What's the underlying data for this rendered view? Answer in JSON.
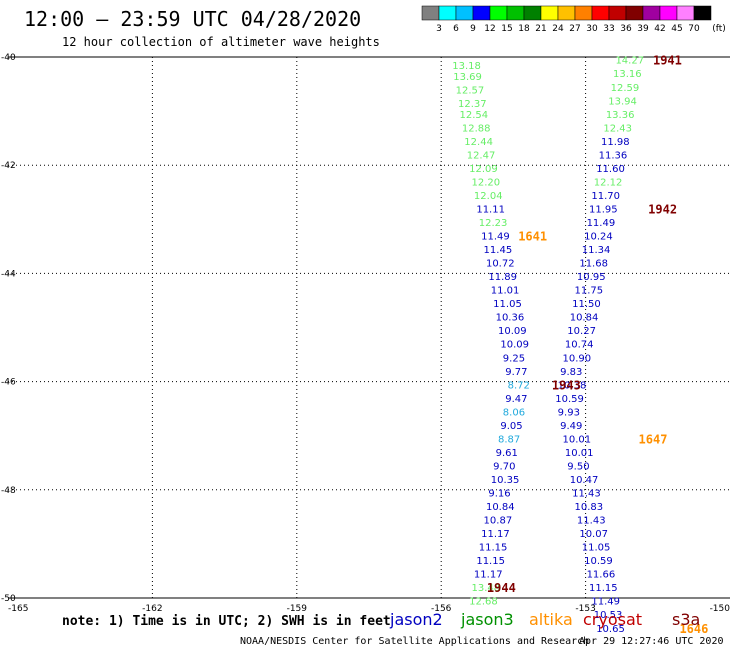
{
  "header": {
    "title": "12:00 – 23:59 UTC 04/28/2020",
    "subtitle": "12 hour collection of altimeter wave heights"
  },
  "colorbar": {
    "colors": [
      "#808080",
      "#00ffff",
      "#00c0ff",
      "#0000ff",
      "#00ff00",
      "#00c000",
      "#008000",
      "#ffff00",
      "#ffc000",
      "#ff8000",
      "#ff0000",
      "#c00000",
      "#800000",
      "#a000a0",
      "#ff00ff",
      "#ff80ff",
      "#000000"
    ],
    "labels": [
      "3",
      "6",
      "9",
      "12",
      "15",
      "18",
      "21",
      "24",
      "27",
      "30",
      "33",
      "36",
      "39",
      "42",
      "45",
      "70"
    ],
    "unit": "(ft)"
  },
  "legend": [
    {
      "name": "jason2",
      "color": "#0000c0"
    },
    {
      "name": "jason3",
      "color": "#009000"
    },
    {
      "name": "altika",
      "color": "#ff9000"
    },
    {
      "name": "cryosat",
      "color": "#c00000"
    },
    {
      "name": "s3a",
      "color": "#800000"
    }
  ],
  "note": "note: 1) Time is in UTC; 2) SWH is in feet",
  "footer": {
    "credit": "NOAA/NESDIS Center for Satellite Applications and Research",
    "timestamp": "Apr 29 12:27:46 UTC 2020"
  },
  "chart_data": {
    "type": "scatter",
    "xlim": [
      -165,
      -150
    ],
    "ylim": [
      -50,
      -40
    ],
    "x_ticks": [
      -165,
      -162,
      -159,
      -156,
      -153,
      -150
    ],
    "y_ticks": [
      -40,
      -42,
      -44,
      -46,
      -48,
      -50
    ],
    "x_tick_labels": [
      "-165",
      "-162",
      "-159",
      "-156",
      "-153",
      "-150"
    ],
    "y_tick_labels": [
      "-40",
      "-42",
      "-44",
      "-46",
      "-48",
      "-50"
    ],
    "grid": true,
    "points": [
      {
        "x": -155.77,
        "y": -40.15,
        "v": "13.18",
        "c": "#66ee66"
      },
      {
        "x": -155.75,
        "y": -40.35,
        "v": "13.69",
        "c": "#66ee66"
      },
      {
        "x": -155.7,
        "y": -40.6,
        "v": "12.57",
        "c": "#66ee66"
      },
      {
        "x": -155.65,
        "y": -40.85,
        "v": "12.37",
        "c": "#66ee66"
      },
      {
        "x": -155.62,
        "y": -41.05,
        "v": "12.54",
        "c": "#66ee66"
      },
      {
        "x": -155.57,
        "y": -41.3,
        "v": "12.88",
        "c": "#66ee66"
      },
      {
        "x": -155.52,
        "y": -41.55,
        "v": "12.44",
        "c": "#66ee66"
      },
      {
        "x": -155.47,
        "y": -41.8,
        "v": "12.47",
        "c": "#66ee66"
      },
      {
        "x": -155.42,
        "y": -42.05,
        "v": "12.09",
        "c": "#66ee66"
      },
      {
        "x": -155.37,
        "y": -42.3,
        "v": "12.20",
        "c": "#66ee66"
      },
      {
        "x": -155.32,
        "y": -42.55,
        "v": "12.04",
        "c": "#66ee66"
      },
      {
        "x": -155.27,
        "y": -42.8,
        "v": "11.11",
        "c": "#0000c0"
      },
      {
        "x": -155.22,
        "y": -43.05,
        "v": "12.23",
        "c": "#66ee66"
      },
      {
        "x": -155.17,
        "y": -43.3,
        "v": "11.49",
        "c": "#0000c0"
      },
      {
        "x": -155.12,
        "y": -43.55,
        "v": "11.45",
        "c": "#0000c0"
      },
      {
        "x": -155.07,
        "y": -43.8,
        "v": "10.72",
        "c": "#0000c0"
      },
      {
        "x": -155.02,
        "y": -44.05,
        "v": "11.89",
        "c": "#0000c0"
      },
      {
        "x": -154.97,
        "y": -44.3,
        "v": "11.01",
        "c": "#0000c0"
      },
      {
        "x": -154.92,
        "y": -44.55,
        "v": "11.05",
        "c": "#0000c0"
      },
      {
        "x": -154.87,
        "y": -44.8,
        "v": "10.36",
        "c": "#0000c0"
      },
      {
        "x": -154.82,
        "y": -45.05,
        "v": "10.09",
        "c": "#0000c0"
      },
      {
        "x": -154.77,
        "y": -45.3,
        "v": "10.09",
        "c": "#0000c0"
      },
      {
        "x": -154.72,
        "y": -45.55,
        "v": "9.25",
        "c": "#0000c0"
      },
      {
        "x": -154.67,
        "y": -45.8,
        "v": "9.77",
        "c": "#0000c0"
      },
      {
        "x": -154.62,
        "y": -46.05,
        "v": "8.72",
        "c": "#22aadd"
      },
      {
        "x": -154.67,
        "y": -46.3,
        "v": "9.47",
        "c": "#0000c0"
      },
      {
        "x": -154.72,
        "y": -46.55,
        "v": "8.06",
        "c": "#22aadd"
      },
      {
        "x": -154.77,
        "y": -46.8,
        "v": "9.05",
        "c": "#0000c0"
      },
      {
        "x": -154.82,
        "y": -47.05,
        "v": "8.87",
        "c": "#22aadd"
      },
      {
        "x": -154.87,
        "y": -47.3,
        "v": "9.61",
        "c": "#0000c0"
      },
      {
        "x": -154.92,
        "y": -47.55,
        "v": "9.70",
        "c": "#0000c0"
      },
      {
        "x": -154.97,
        "y": -47.8,
        "v": "10.35",
        "c": "#0000c0"
      },
      {
        "x": -155.02,
        "y": -48.05,
        "v": "9.16",
        "c": "#0000c0"
      },
      {
        "x": -155.07,
        "y": -48.3,
        "v": "10.84",
        "c": "#0000c0"
      },
      {
        "x": -155.12,
        "y": -48.55,
        "v": "10.87",
        "c": "#0000c0"
      },
      {
        "x": -155.17,
        "y": -48.8,
        "v": "11.17",
        "c": "#0000c0"
      },
      {
        "x": -155.22,
        "y": -49.05,
        "v": "11.15",
        "c": "#0000c0"
      },
      {
        "x": -155.27,
        "y": -49.3,
        "v": "11.15",
        "c": "#0000c0"
      },
      {
        "x": -155.32,
        "y": -49.55,
        "v": "11.17",
        "c": "#0000c0"
      },
      {
        "x": -155.37,
        "y": -49.8,
        "v": "13.48",
        "c": "#66ee66"
      },
      {
        "x": -155.42,
        "y": -50.05,
        "v": "12.68",
        "c": "#66ee66"
      },
      {
        "x": -152.38,
        "y": -40.05,
        "v": "14.27",
        "c": "#66ee66"
      },
      {
        "x": -152.43,
        "y": -40.3,
        "v": "13.16",
        "c": "#66ee66"
      },
      {
        "x": -152.48,
        "y": -40.55,
        "v": "12.59",
        "c": "#66ee66"
      },
      {
        "x": -152.53,
        "y": -40.8,
        "v": "13.94",
        "c": "#66ee66"
      },
      {
        "x": -152.58,
        "y": -41.05,
        "v": "13.36",
        "c": "#66ee66"
      },
      {
        "x": -152.63,
        "y": -41.3,
        "v": "12.43",
        "c": "#66ee66"
      },
      {
        "x": -152.68,
        "y": -41.55,
        "v": "11.98",
        "c": "#0000c0"
      },
      {
        "x": -152.73,
        "y": -41.8,
        "v": "11.36",
        "c": "#0000c0"
      },
      {
        "x": -152.78,
        "y": -42.05,
        "v": "11.60",
        "c": "#0000c0"
      },
      {
        "x": -152.83,
        "y": -42.3,
        "v": "12.12",
        "c": "#66ee66"
      },
      {
        "x": -152.88,
        "y": -42.55,
        "v": "11.70",
        "c": "#0000c0"
      },
      {
        "x": -152.93,
        "y": -42.8,
        "v": "11.95",
        "c": "#0000c0"
      },
      {
        "x": -152.98,
        "y": -43.05,
        "v": "11.49",
        "c": "#0000c0"
      },
      {
        "x": -153.03,
        "y": -43.3,
        "v": "10.24",
        "c": "#0000c0"
      },
      {
        "x": -153.08,
        "y": -43.55,
        "v": "11.34",
        "c": "#0000c0"
      },
      {
        "x": -153.13,
        "y": -43.8,
        "v": "11.68",
        "c": "#0000c0"
      },
      {
        "x": -153.18,
        "y": -44.05,
        "v": "10.95",
        "c": "#0000c0"
      },
      {
        "x": -153.23,
        "y": -44.3,
        "v": "11.75",
        "c": "#0000c0"
      },
      {
        "x": -153.28,
        "y": -44.55,
        "v": "11.50",
        "c": "#0000c0"
      },
      {
        "x": -153.33,
        "y": -44.8,
        "v": "10.84",
        "c": "#0000c0"
      },
      {
        "x": -153.38,
        "y": -45.05,
        "v": "10.27",
        "c": "#0000c0"
      },
      {
        "x": -153.43,
        "y": -45.3,
        "v": "10.74",
        "c": "#0000c0"
      },
      {
        "x": -153.48,
        "y": -45.55,
        "v": "10.90",
        "c": "#0000c0"
      },
      {
        "x": -153.53,
        "y": -45.8,
        "v": "9.83",
        "c": "#0000c0"
      },
      {
        "x": -153.58,
        "y": -46.05,
        "v": "10.38",
        "c": "#0000c0"
      },
      {
        "x": -153.63,
        "y": -46.3,
        "v": "10.59",
        "c": "#0000c0"
      },
      {
        "x": -153.58,
        "y": -46.55,
        "v": "9.93",
        "c": "#0000c0"
      },
      {
        "x": -153.53,
        "y": -46.8,
        "v": "9.49",
        "c": "#0000c0"
      },
      {
        "x": -153.48,
        "y": -47.05,
        "v": "10.01",
        "c": "#0000c0"
      },
      {
        "x": -153.43,
        "y": -47.3,
        "v": "10.01",
        "c": "#0000c0"
      },
      {
        "x": -153.38,
        "y": -47.55,
        "v": "9.50",
        "c": "#0000c0"
      },
      {
        "x": -153.33,
        "y": -47.8,
        "v": "10.47",
        "c": "#0000c0"
      },
      {
        "x": -153.28,
        "y": -48.05,
        "v": "11.43",
        "c": "#0000c0"
      },
      {
        "x": -153.23,
        "y": -48.3,
        "v": "10.83",
        "c": "#0000c0"
      },
      {
        "x": -153.18,
        "y": -48.55,
        "v": "11.43",
        "c": "#0000c0"
      },
      {
        "x": -153.13,
        "y": -48.8,
        "v": "10.07",
        "c": "#0000c0"
      },
      {
        "x": -153.08,
        "y": -49.05,
        "v": "11.05",
        "c": "#0000c0"
      },
      {
        "x": -153.03,
        "y": -49.3,
        "v": "10.59",
        "c": "#0000c0"
      },
      {
        "x": -152.98,
        "y": -49.55,
        "v": "11.66",
        "c": "#0000c0"
      },
      {
        "x": -152.93,
        "y": -49.8,
        "v": "11.15",
        "c": "#0000c0"
      },
      {
        "x": -152.88,
        "y": -50.05,
        "v": "11.49",
        "c": "#0000c0"
      },
      {
        "x": -152.83,
        "y": -50.3,
        "v": "10.53",
        "c": "#0000c0"
      },
      {
        "x": -152.78,
        "y": -50.55,
        "v": "10.65",
        "c": "#0000c0"
      }
    ],
    "time_labels": [
      {
        "x": -151.6,
        "y": -40.05,
        "text": "1941",
        "c": "#800000"
      },
      {
        "x": -151.7,
        "y": -42.8,
        "text": "1942",
        "c": "#800000"
      },
      {
        "x": -154.4,
        "y": -43.3,
        "text": "1641",
        "c": "#ff9000"
      },
      {
        "x": -153.7,
        "y": -46.05,
        "text": "1943",
        "c": "#800000"
      },
      {
        "x": -151.9,
        "y": -47.05,
        "text": "1647",
        "c": "#ff9000"
      },
      {
        "x": -155.05,
        "y": -49.8,
        "text": "1944",
        "c": "#800000"
      },
      {
        "x": -151.05,
        "y": -50.55,
        "text": "1646",
        "c": "#ff9000"
      }
    ]
  }
}
